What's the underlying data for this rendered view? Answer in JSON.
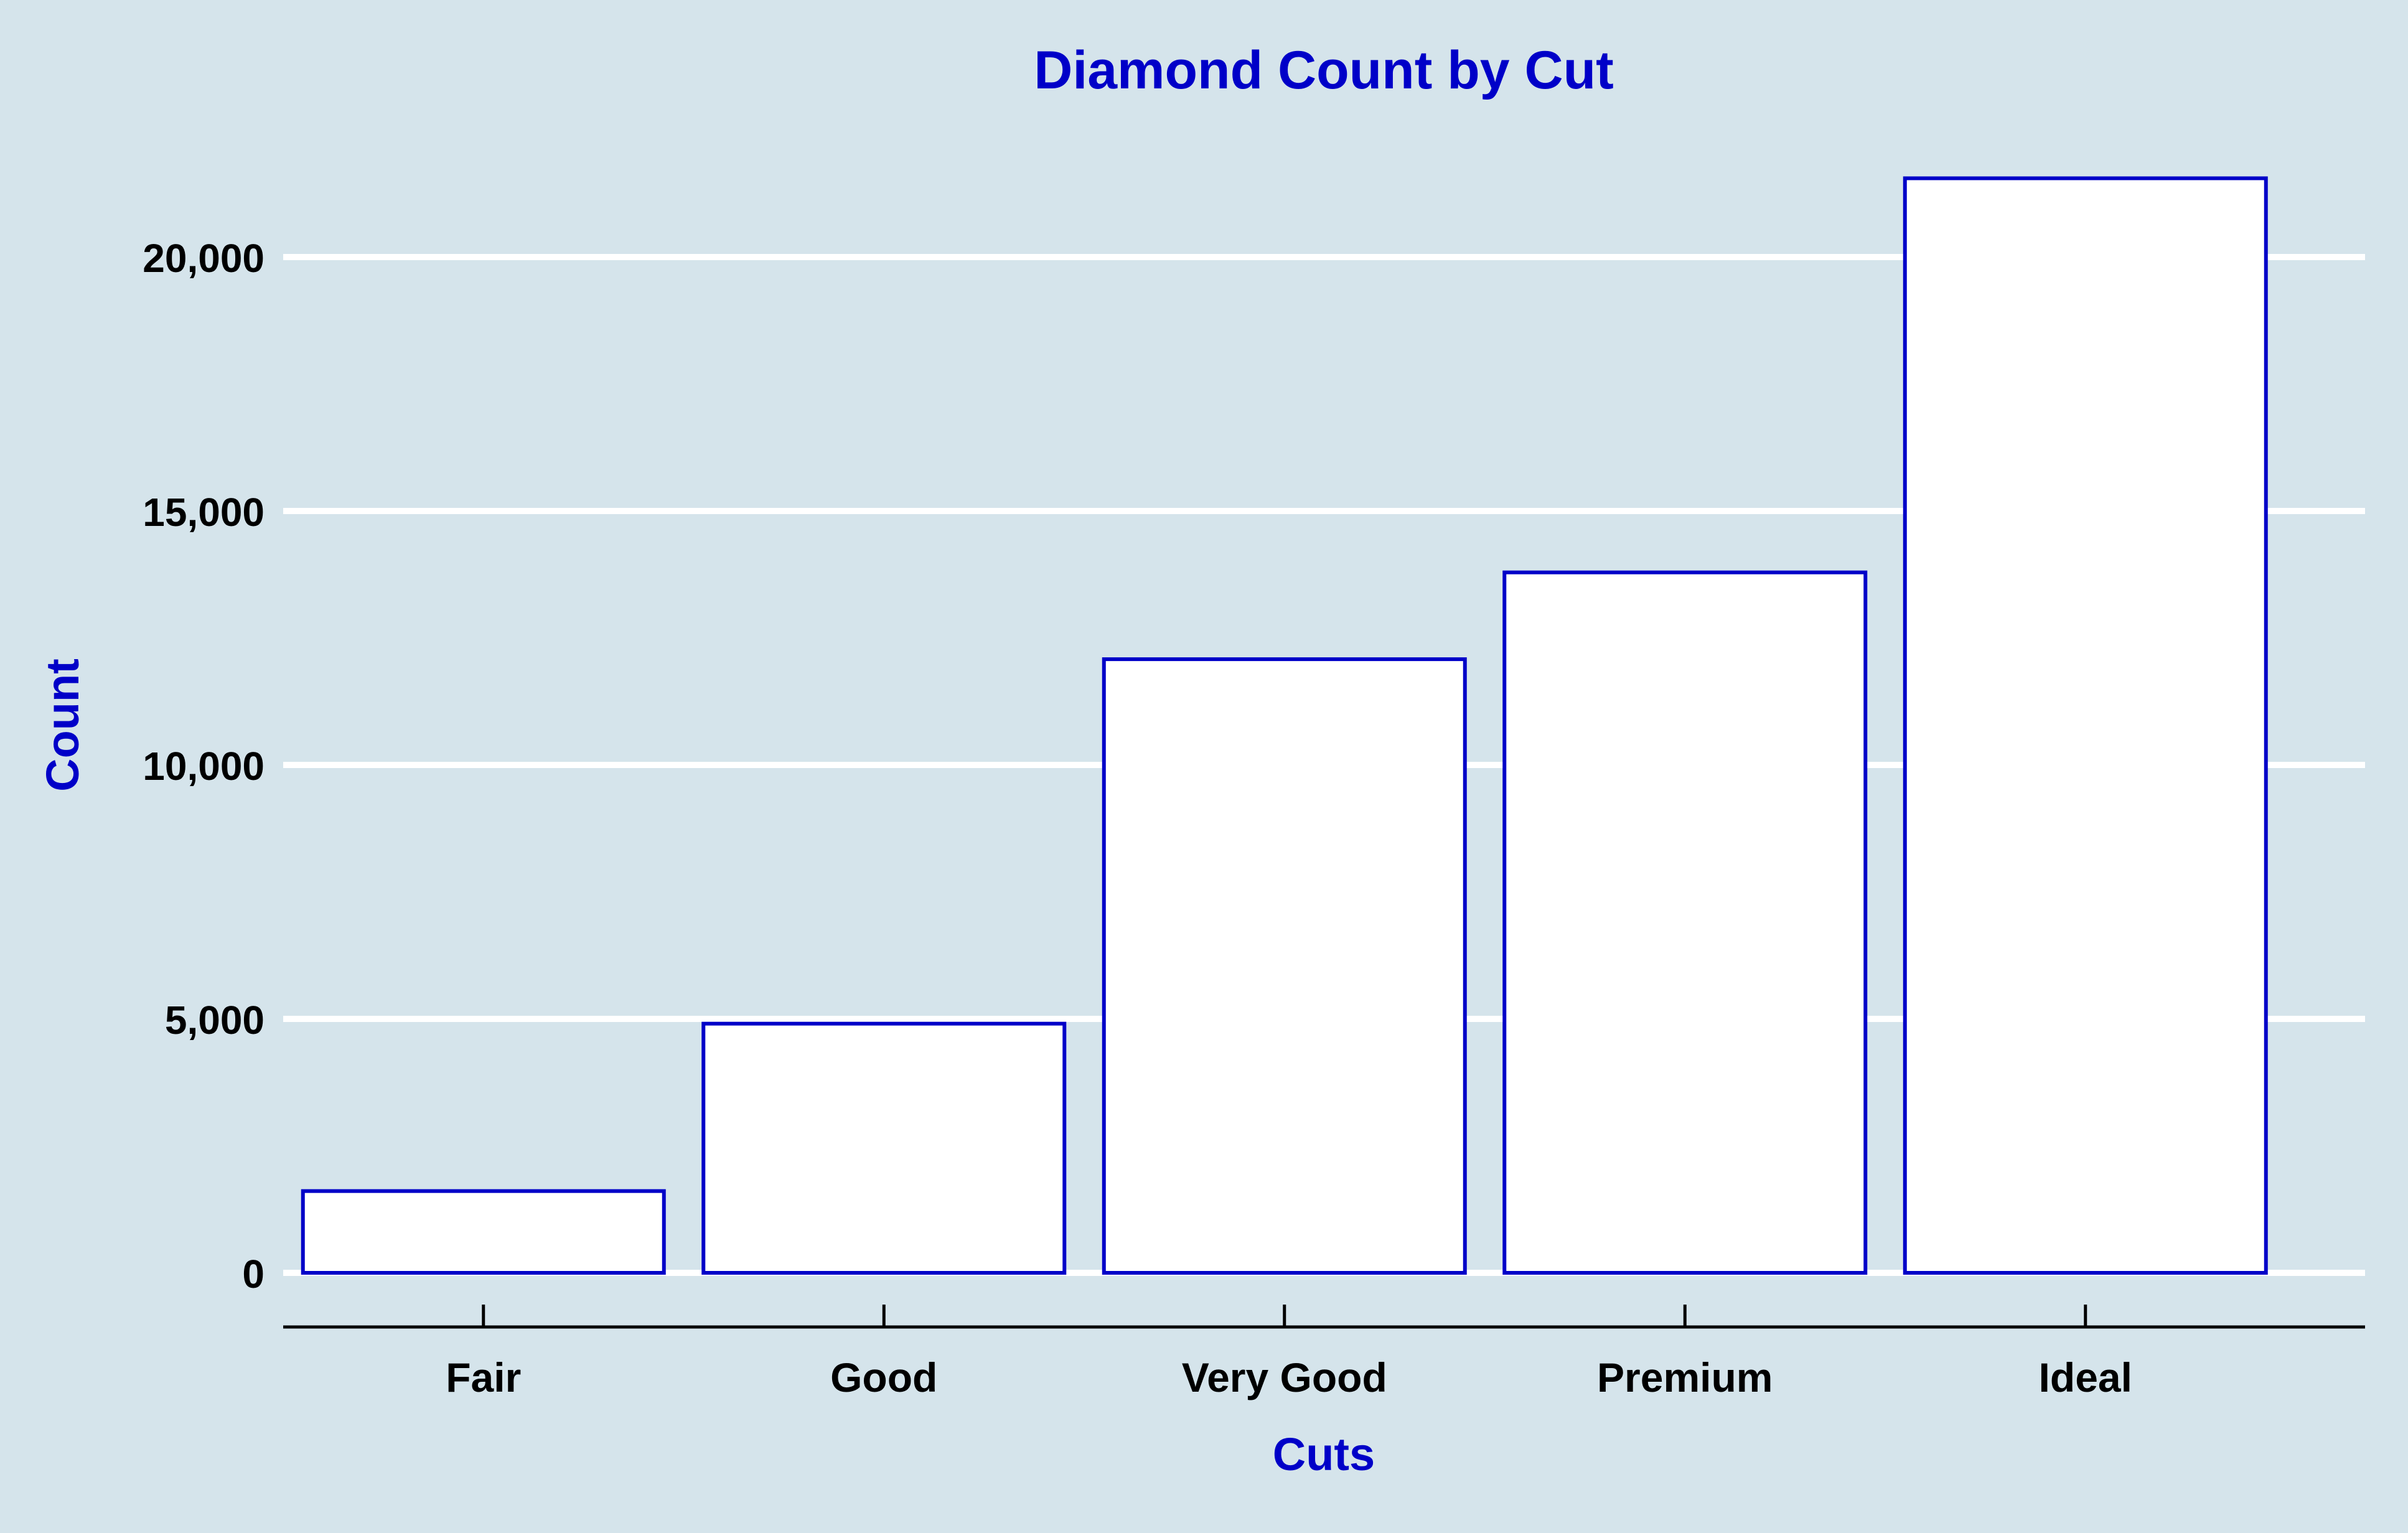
{
  "colors": {
    "background": "#d5e4eb",
    "title": "#0000c8",
    "bar_fill": "#ffffff",
    "bar_stroke": "#0000c8",
    "grid": "#ffffff",
    "tick_text": "#000000",
    "axis_line": "#000000"
  },
  "chart_data": {
    "type": "bar",
    "title": "Diamond Count by Cut",
    "xlabel": "Cuts",
    "ylabel": "Count",
    "categories": [
      "Fair",
      "Good",
      "Very Good",
      "Premium",
      "Ideal"
    ],
    "values": [
      1610,
      4906,
      12082,
      13791,
      21551
    ],
    "ylim": [
      0,
      22000
    ],
    "yticks": [
      0,
      5000,
      10000,
      15000,
      20000
    ],
    "ytick_labels": [
      "0",
      "5,000",
      "10,000",
      "15,000",
      "20,000"
    ],
    "grid": "horizontal",
    "legend": "none"
  }
}
